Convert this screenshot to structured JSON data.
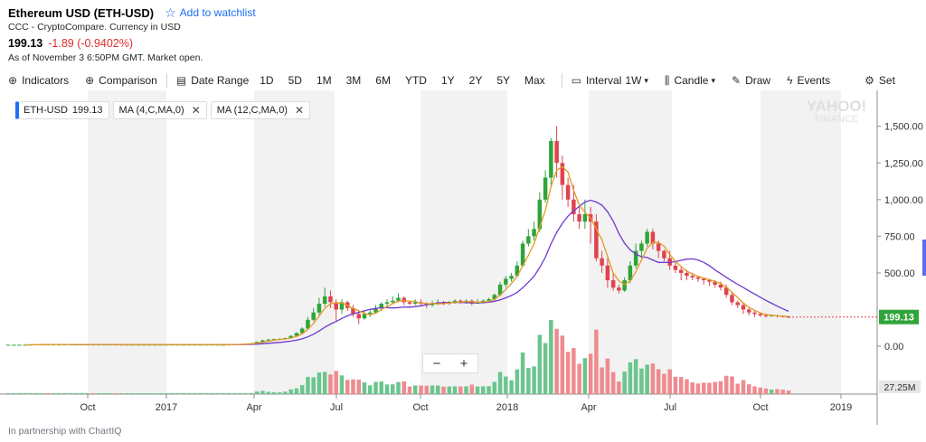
{
  "header": {
    "title": "Ethereum USD (ETH-USD)",
    "watchlist_label": "Add to watchlist",
    "source": "CCC - CryptoCompare. Currency in USD",
    "price": "199.13",
    "change": "-1.89 (-0.9402%)",
    "as_of": "As of November 3 6:50PM GMT. Market open."
  },
  "toolbar": {
    "indicators": "Indicators",
    "comparison": "Comparison",
    "date_range": "Date Range",
    "ranges": [
      "1D",
      "5D",
      "1M",
      "3M",
      "6M",
      "YTD",
      "1Y",
      "2Y",
      "5Y",
      "Max"
    ],
    "interval_label": "Interval",
    "interval_value": "1W",
    "candle": "Candle",
    "draw": "Draw",
    "events": "Events",
    "settings": "Set"
  },
  "chips": {
    "main": "ETH-USD",
    "main_price": "199.13",
    "ma1": "MA (4,C,MA,0)",
    "ma2": "MA (12,C,MA,0)"
  },
  "zoom": {
    "minus": "−",
    "plus": "+"
  },
  "watermark": {
    "line1": "YAHOO!",
    "line2": "FINANCE"
  },
  "footer": "In partnership with ChartIQ",
  "colors": {
    "up": "#2fa43a",
    "down": "#e0434f",
    "ma4": "#e39a21",
    "ma12": "#6f38cf",
    "last_price_bg": "#2fa43a",
    "volume_up": "#6bc58e",
    "volume_down": "#ef8a8e"
  },
  "chart_data": {
    "type": "candlestick",
    "y_ticks": [
      "1,500.00",
      "1,250.00",
      "1,000.00",
      "750.00",
      "500.00",
      "0.00"
    ],
    "y_tick_values": [
      1500,
      1250,
      1000,
      750,
      500,
      0
    ],
    "ylim": [
      -80,
      1560
    ],
    "x_ticks": [
      "Oct",
      "2017",
      "Apr",
      "Jul",
      "Oct",
      "2018",
      "Apr",
      "Jul",
      "Oct",
      "2019"
    ],
    "last_price": "199.13",
    "volume_max_label": "27.25M",
    "candles": [
      [
        10,
        10,
        10,
        10
      ],
      [
        10,
        10,
        10,
        10
      ],
      [
        10,
        10,
        10,
        10
      ],
      [
        10,
        10,
        10,
        10
      ],
      [
        11,
        11,
        11,
        11
      ],
      [
        11,
        12,
        12,
        11
      ],
      [
        12,
        12,
        12,
        11
      ],
      [
        12,
        11,
        12,
        11
      ],
      [
        11,
        12,
        12,
        11
      ],
      [
        12,
        12,
        12,
        12
      ],
      [
        12,
        12,
        12,
        12
      ],
      [
        12,
        12,
        12,
        12
      ],
      [
        12,
        12,
        12,
        12
      ],
      [
        12,
        12,
        12,
        12
      ],
      [
        12,
        12,
        12,
        11
      ],
      [
        12,
        11,
        12,
        11
      ],
      [
        11,
        12,
        12,
        10
      ],
      [
        12,
        12,
        12,
        11
      ],
      [
        12,
        12,
        12,
        11
      ],
      [
        12,
        11,
        12,
        11
      ],
      [
        11,
        11,
        11,
        10
      ],
      [
        11,
        11,
        11,
        10
      ],
      [
        11,
        11,
        11,
        10
      ],
      [
        11,
        11,
        11,
        10
      ],
      [
        11,
        11,
        11,
        10
      ],
      [
        11,
        11,
        11,
        10
      ],
      [
        11,
        11,
        11,
        10
      ],
      [
        11,
        11,
        11,
        10
      ],
      [
        11,
        11,
        11,
        10
      ],
      [
        11,
        11,
        11,
        10
      ],
      [
        11,
        11,
        11,
        10
      ],
      [
        11,
        11,
        11,
        10
      ],
      [
        11,
        11,
        11,
        10
      ],
      [
        11,
        11,
        11,
        10
      ],
      [
        11,
        11,
        11,
        10
      ],
      [
        11,
        11,
        11,
        10
      ],
      [
        11,
        11,
        11,
        10
      ],
      [
        11,
        11,
        11,
        10
      ],
      [
        10,
        10,
        10,
        10
      ],
      [
        11,
        12,
        13,
        10
      ],
      [
        12,
        13,
        14,
        11
      ],
      [
        13,
        15,
        16,
        12
      ],
      [
        15,
        17,
        18,
        14
      ],
      [
        17,
        20,
        21,
        16
      ],
      [
        20,
        30,
        32,
        19
      ],
      [
        30,
        40,
        45,
        28
      ],
      [
        40,
        45,
        50,
        38
      ],
      [
        45,
        48,
        52,
        42
      ],
      [
        48,
        50,
        55,
        45
      ],
      [
        50,
        55,
        60,
        47
      ],
      [
        55,
        70,
        75,
        52
      ],
      [
        70,
        90,
        95,
        68
      ],
      [
        90,
        120,
        130,
        85
      ],
      [
        120,
        180,
        200,
        110
      ],
      [
        180,
        230,
        260,
        170
      ],
      [
        230,
        290,
        330,
        210
      ],
      [
        290,
        340,
        400,
        270
      ],
      [
        340,
        300,
        380,
        260
      ],
      [
        300,
        250,
        320,
        170
      ],
      [
        250,
        300,
        320,
        220
      ],
      [
        300,
        260,
        310,
        240
      ],
      [
        260,
        220,
        280,
        200
      ],
      [
        220,
        190,
        240,
        150
      ],
      [
        190,
        220,
        240,
        180
      ],
      [
        220,
        230,
        250,
        200
      ],
      [
        230,
        260,
        280,
        220
      ],
      [
        260,
        290,
        300,
        240
      ],
      [
        290,
        300,
        320,
        270
      ],
      [
        300,
        310,
        340,
        290
      ],
      [
        310,
        330,
        360,
        300
      ],
      [
        330,
        300,
        340,
        280
      ],
      [
        300,
        290,
        310,
        280
      ],
      [
        290,
        300,
        320,
        280
      ],
      [
        300,
        290,
        320,
        280
      ],
      [
        290,
        280,
        300,
        260
      ],
      [
        280,
        290,
        310,
        270
      ],
      [
        290,
        300,
        320,
        280
      ],
      [
        300,
        290,
        310,
        280
      ],
      [
        290,
        300,
        310,
        280
      ],
      [
        300,
        310,
        320,
        290
      ],
      [
        310,
        300,
        320,
        290
      ],
      [
        300,
        310,
        320,
        290
      ],
      [
        310,
        290,
        320,
        280
      ],
      [
        290,
        300,
        320,
        290
      ],
      [
        300,
        310,
        320,
        290
      ],
      [
        310,
        320,
        330,
        300
      ],
      [
        320,
        350,
        360,
        310
      ],
      [
        350,
        420,
        440,
        340
      ],
      [
        420,
        460,
        480,
        400
      ],
      [
        460,
        480,
        500,
        440
      ],
      [
        480,
        550,
        580,
        470
      ],
      [
        550,
        700,
        720,
        540
      ],
      [
        700,
        750,
        800,
        680
      ],
      [
        750,
        800,
        850,
        720
      ],
      [
        800,
        1000,
        1050,
        780
      ],
      [
        1000,
        1150,
        1200,
        980
      ],
      [
        1150,
        1400,
        1420,
        1100
      ],
      [
        1400,
        1250,
        1500,
        1150
      ],
      [
        1250,
        1100,
        1300,
        1000
      ],
      [
        1100,
        1000,
        1150,
        950
      ],
      [
        1000,
        900,
        1100,
        850
      ],
      [
        900,
        850,
        950,
        800
      ],
      [
        850,
        900,
        1000,
        800
      ],
      [
        900,
        850,
        950,
        700
      ],
      [
        850,
        600,
        900,
        580
      ],
      [
        600,
        550,
        650,
        500
      ],
      [
        550,
        450,
        600,
        400
      ],
      [
        450,
        400,
        500,
        380
      ],
      [
        400,
        380,
        420,
        360
      ],
      [
        380,
        450,
        470,
        370
      ],
      [
        450,
        550,
        580,
        430
      ],
      [
        550,
        650,
        700,
        530
      ],
      [
        650,
        700,
        720,
        600
      ],
      [
        700,
        780,
        800,
        680
      ],
      [
        780,
        700,
        800,
        660
      ],
      [
        700,
        650,
        720,
        600
      ],
      [
        650,
        600,
        660,
        580
      ],
      [
        600,
        550,
        650,
        520
      ],
      [
        550,
        520,
        580,
        500
      ],
      [
        520,
        500,
        540,
        450
      ],
      [
        500,
        480,
        520,
        450
      ],
      [
        480,
        470,
        500,
        450
      ],
      [
        470,
        460,
        480,
        440
      ],
      [
        460,
        450,
        470,
        420
      ],
      [
        450,
        440,
        460,
        410
      ],
      [
        440,
        420,
        450,
        400
      ],
      [
        420,
        400,
        440,
        380
      ],
      [
        400,
        350,
        420,
        330
      ],
      [
        350,
        300,
        370,
        280
      ],
      [
        300,
        280,
        310,
        260
      ],
      [
        280,
        250,
        300,
        220
      ],
      [
        250,
        230,
        260,
        210
      ],
      [
        230,
        220,
        240,
        200
      ],
      [
        220,
        210,
        230,
        200
      ],
      [
        210,
        205,
        220,
        195
      ],
      [
        205,
        210,
        215,
        200
      ],
      [
        210,
        205,
        215,
        195
      ],
      [
        205,
        200,
        210,
        195
      ],
      [
        200,
        199.13,
        205,
        195
      ]
    ]
  }
}
